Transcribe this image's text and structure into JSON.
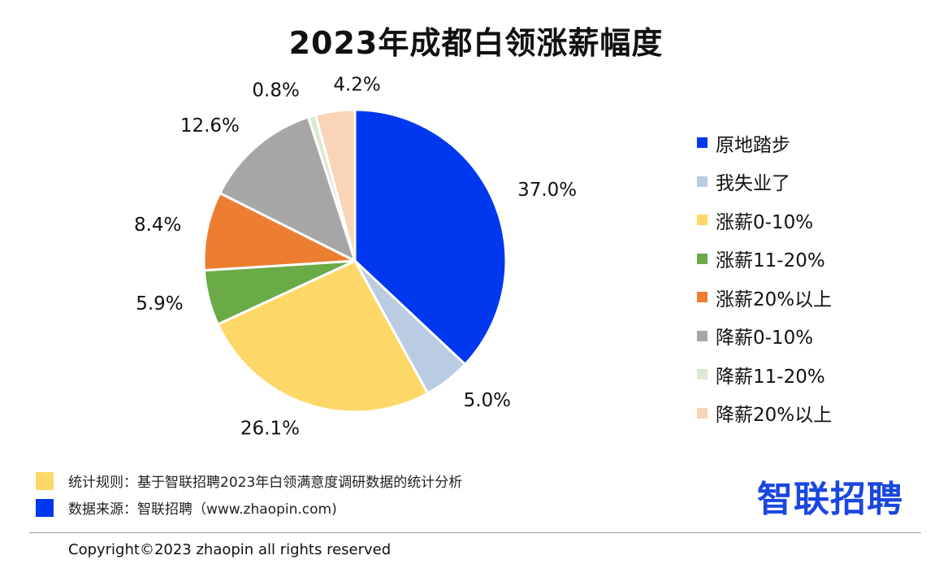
{
  "chart_data": {
    "type": "pie",
    "title": "2023年成都白领涨薪幅度",
    "slices": [
      {
        "label": "原地踏步",
        "value": 37.0,
        "value_label": "37.0%",
        "color": "#0038f0"
      },
      {
        "label": "我失业了",
        "value": 5.0,
        "value_label": "5.0%",
        "color": "#b9cce2"
      },
      {
        "label": "涨薪0-10%",
        "value": 26.1,
        "value_label": "26.1%",
        "color": "#fdd868"
      },
      {
        "label": "涨薪11-20%",
        "value": 5.9,
        "value_label": "5.9%",
        "color": "#6aaa47"
      },
      {
        "label": "涨薪20%以上",
        "value": 8.4,
        "value_label": "8.4%",
        "color": "#ec7d31"
      },
      {
        "label": "降薪0-10%",
        "value": 12.6,
        "value_label": "12.6%",
        "color": "#a6a6a6"
      },
      {
        "label": "降薪11-20%",
        "value": 0.8,
        "value_label": "0.8%",
        "color": "#dce9d2"
      },
      {
        "label": "降薪20%以上",
        "value": 4.2,
        "value_label": "4.2%",
        "color": "#f9d4b8"
      }
    ],
    "legend_position": "right"
  },
  "notes": [
    {
      "text": "统计规则：基于智联招聘2023年白领满意度调研数据的统计分析",
      "color": "#fdd868"
    },
    {
      "text": "数据来源：智联招聘（www.zhaopin.com)",
      "color": "#0038f0"
    }
  ],
  "brand": {
    "logo_text": "智联招聘",
    "color": "#1a47e0"
  },
  "footer": {
    "copyright": "Copyright©2023 zhaopin all rights reserved"
  }
}
